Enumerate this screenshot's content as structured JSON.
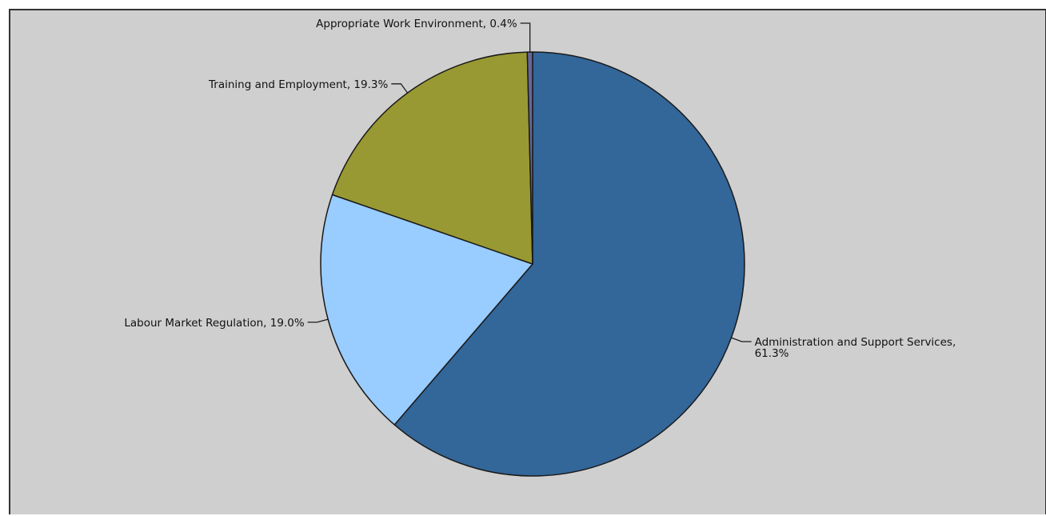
{
  "chart_data": {
    "type": "pie",
    "title": "",
    "start_angle_deg": 0,
    "direction": "clockwise",
    "slices": [
      {
        "name": "Administration and Support Services",
        "value": 61.3,
        "label_lines": [
          "Administration and Support Services,",
          "61.3%"
        ],
        "color": "#336699"
      },
      {
        "name": "Labour Market Regulation",
        "value": 19.0,
        "label_lines": [
          "Labour Market Regulation, 19.0%"
        ],
        "color": "#99ccff"
      },
      {
        "name": "Training and Employment",
        "value": 19.3,
        "label_lines": [
          "Training and Employment, 19.3%"
        ],
        "color": "#999933"
      },
      {
        "name": "Appropriate Work Environment",
        "value": 0.4,
        "label_lines": [
          "Appropriate Work Environment, 0.4%"
        ],
        "color": "#666699"
      }
    ],
    "background_color": "#cfcfcf",
    "legend": "none"
  }
}
